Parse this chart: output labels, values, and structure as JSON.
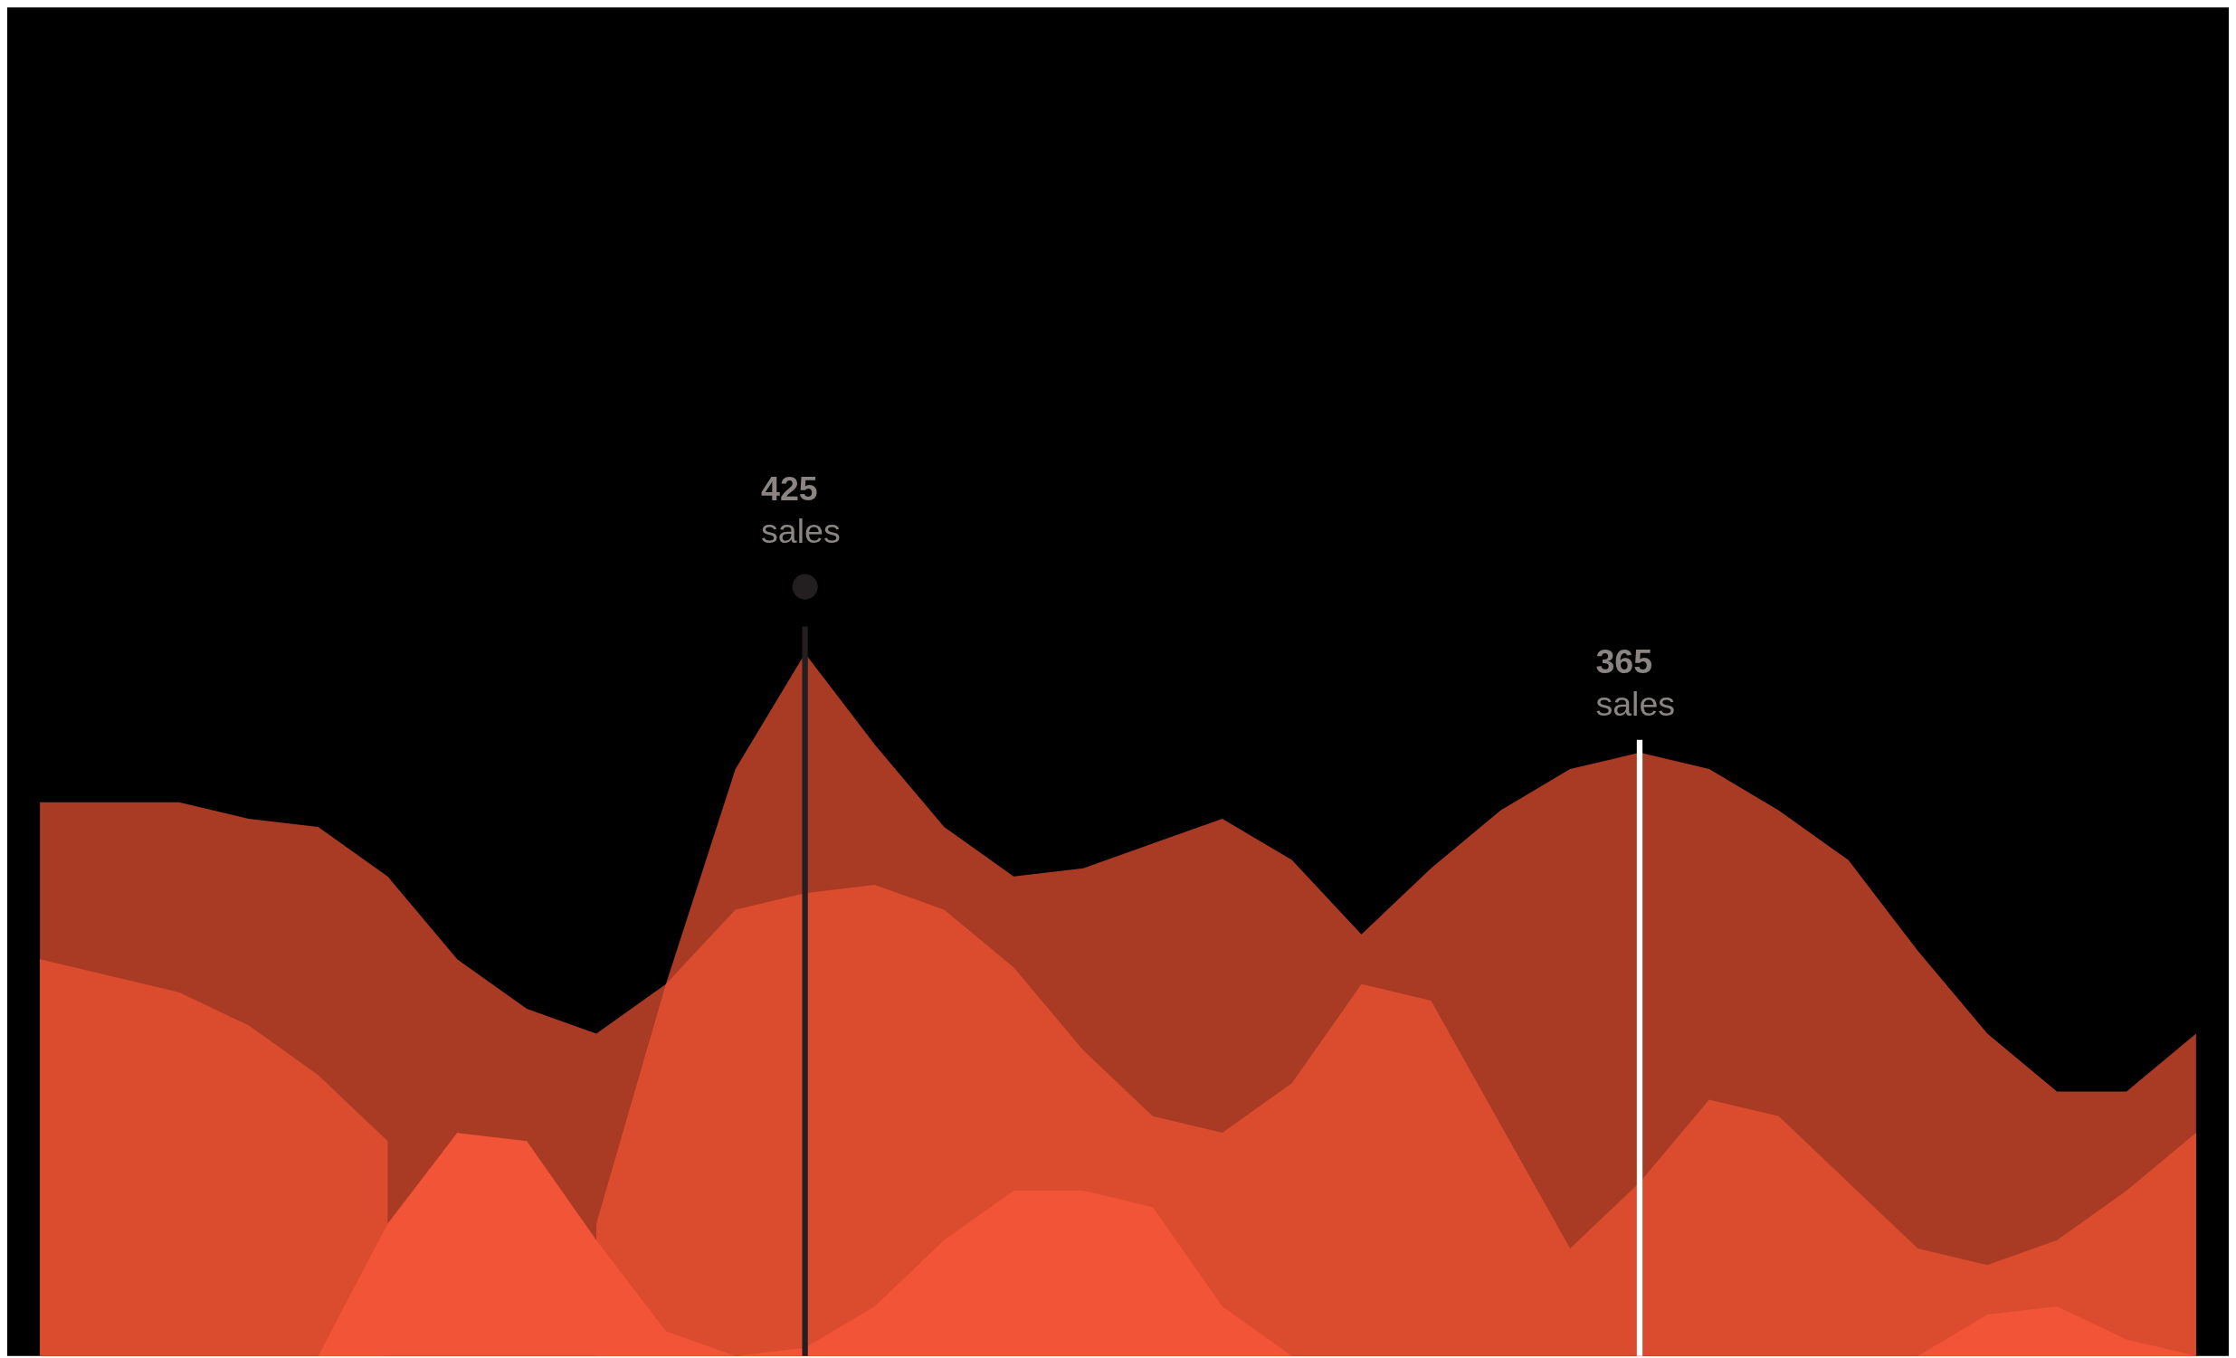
{
  "chart_data": {
    "type": "area",
    "categories": [
      null,
      null,
      null,
      null,
      null,
      null,
      null,
      null,
      null,
      null,
      null,
      null,
      null,
      null,
      null,
      null,
      null,
      null,
      null,
      null,
      null,
      null,
      null,
      null,
      null,
      null,
      null,
      null,
      null,
      null,
      null,
      null
    ],
    "series": [
      {
        "color": "#a93b24",
        "values": [
          335,
          335,
          335,
          325,
          320,
          290,
          240,
          210,
          195,
          225,
          355,
          425,
          370,
          320,
          290,
          295,
          310,
          325,
          300,
          255,
          295,
          330,
          355,
          365,
          355,
          330,
          300,
          245,
          195,
          160,
          160,
          195
        ],
        "value_labels": [
          null,
          null,
          null,
          null,
          null,
          null,
          null,
          null,
          null,
          null,
          null,
          "425 sales",
          null,
          null,
          null,
          null,
          null,
          null,
          null,
          null,
          null,
          null,
          null,
          "365 sales",
          null,
          null,
          null,
          null,
          null,
          null,
          null,
          null
        ]
      },
      {
        "color": "#db4c2f",
        "values": [
          240,
          230,
          220,
          200,
          170,
          130,
          null,
          null,
          80,
          225,
          270,
          280,
          285,
          270,
          235,
          185,
          145,
          135,
          165,
          225,
          215,
          140,
          65,
          105,
          155,
          145,
          105,
          65,
          55,
          70,
          100,
          135
        ]
      },
      {
        "color": "#f15437",
        "values": [
          0,
          0,
          0,
          0,
          0,
          80,
          135,
          130,
          70,
          15,
          0,
          5,
          30,
          70,
          100,
          100,
          90,
          30,
          0,
          0,
          0,
          0,
          0,
          0,
          0,
          0,
          0,
          0,
          25,
          30,
          10,
          0
        ]
      }
    ]
  }
}
